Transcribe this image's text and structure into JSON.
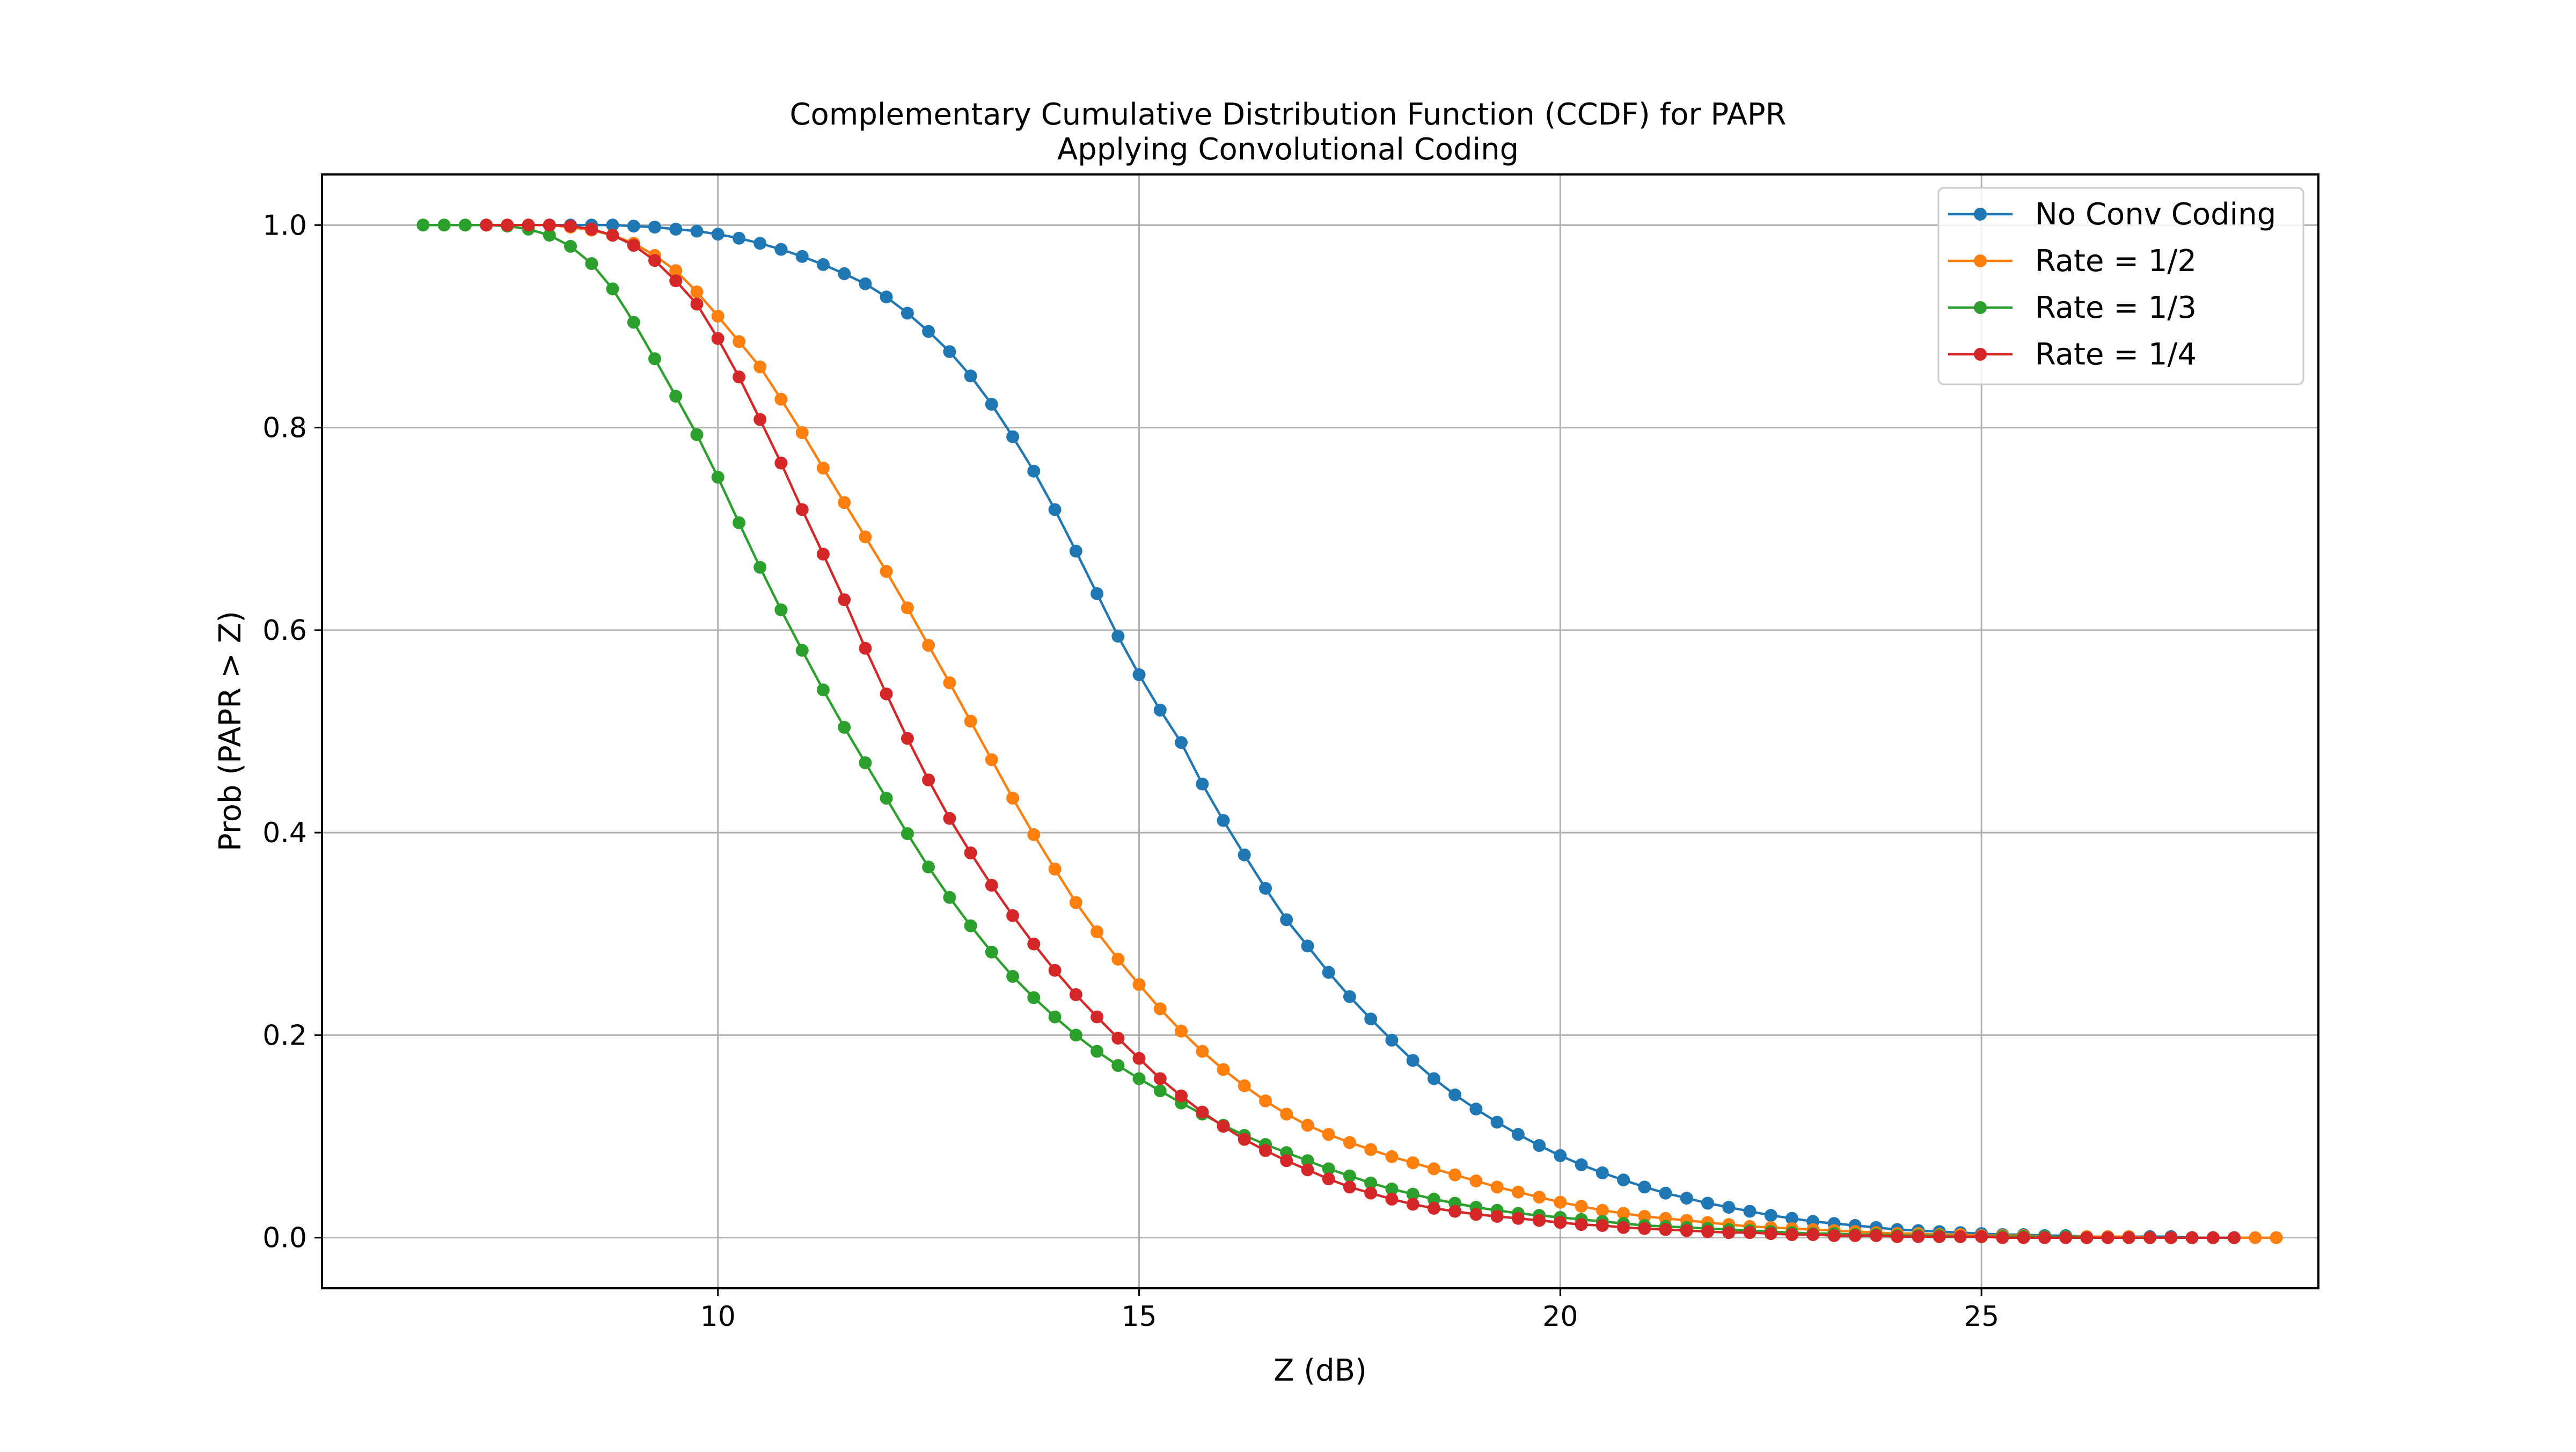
{
  "chart_data": {
    "type": "line",
    "title": "Complementary Cumulative Distribution Function (CCDF) for PAPR",
    "subtitle": "Applying Convolutional Coding",
    "xlabel": "Z (dB)",
    "ylabel": "Prob (PAPR > Z)",
    "xlim": [
      5.3,
      29.0
    ],
    "ylim": [
      -0.05,
      1.05
    ],
    "x_ticks": [
      10,
      15,
      20,
      25
    ],
    "x_tick_labels": [
      "10",
      "15",
      "20",
      "25"
    ],
    "y_ticks": [
      0.0,
      0.2,
      0.4,
      0.6,
      0.8,
      1.0
    ],
    "y_tick_labels": [
      "0.0",
      "0.2",
      "0.4",
      "0.6",
      "0.8",
      "1.0"
    ],
    "grid": true,
    "legend_position": "top-right",
    "series": [
      {
        "name": "No Conv Coding",
        "color": "#1f77b4",
        "x_start": 8.0,
        "x_step": 0.25,
        "values": [
          1.0,
          1.0,
          1.0,
          1.0,
          0.999,
          0.998,
          0.996,
          0.994,
          0.991,
          0.987,
          0.982,
          0.976,
          0.969,
          0.961,
          0.952,
          0.942,
          0.929,
          0.913,
          0.895,
          0.875,
          0.851,
          0.823,
          0.791,
          0.757,
          0.719,
          0.678,
          0.636,
          0.594,
          0.556,
          0.521,
          0.489,
          0.448,
          0.412,
          0.378,
          0.345,
          0.314,
          0.288,
          0.262,
          0.238,
          0.216,
          0.195,
          0.175,
          0.157,
          0.141,
          0.127,
          0.114,
          0.102,
          0.091,
          0.081,
          0.072,
          0.064,
          0.057,
          0.05,
          0.044,
          0.039,
          0.034,
          0.03,
          0.026,
          0.022,
          0.019,
          0.016,
          0.014,
          0.012,
          0.01,
          0.008,
          0.007,
          0.006,
          0.005,
          0.004,
          0.003,
          0.003,
          0.002,
          0.002,
          0.001,
          0.001,
          0.001,
          0.001,
          0.001,
          0.0,
          0.0,
          0.0
        ]
      },
      {
        "name": "Rate = 1/2",
        "color": "#ff7f0e",
        "x_start": 7.0,
        "x_step": 0.25,
        "values": [
          1.0,
          1.0,
          1.0,
          1.0,
          1.0,
          0.998,
          0.995,
          0.99,
          0.982,
          0.97,
          0.955,
          0.934,
          0.91,
          0.885,
          0.86,
          0.828,
          0.795,
          0.76,
          0.726,
          0.692,
          0.658,
          0.622,
          0.585,
          0.548,
          0.51,
          0.472,
          0.434,
          0.398,
          0.364,
          0.331,
          0.302,
          0.275,
          0.25,
          0.226,
          0.204,
          0.184,
          0.166,
          0.15,
          0.135,
          0.122,
          0.111,
          0.102,
          0.094,
          0.087,
          0.08,
          0.074,
          0.068,
          0.062,
          0.056,
          0.05,
          0.045,
          0.04,
          0.035,
          0.031,
          0.027,
          0.024,
          0.021,
          0.019,
          0.017,
          0.015,
          0.013,
          0.011,
          0.01,
          0.009,
          0.008,
          0.007,
          0.006,
          0.005,
          0.004,
          0.004,
          0.003,
          0.003,
          0.002,
          0.002,
          0.002,
          0.001,
          0.001,
          0.001,
          0.001,
          0.001,
          0.0,
          0.0,
          0.0,
          0.0,
          0.0,
          0.0,
          0.0
        ]
      },
      {
        "name": "Rate = 1/3",
        "color": "#2ca02c",
        "x_start": 6.5,
        "x_step": 0.25,
        "values": [
          1.0,
          1.0,
          1.0,
          1.0,
          0.999,
          0.996,
          0.99,
          0.979,
          0.962,
          0.937,
          0.904,
          0.868,
          0.831,
          0.793,
          0.751,
          0.706,
          0.662,
          0.62,
          0.58,
          0.541,
          0.504,
          0.469,
          0.434,
          0.399,
          0.366,
          0.336,
          0.308,
          0.282,
          0.258,
          0.237,
          0.218,
          0.2,
          0.184,
          0.17,
          0.157,
          0.145,
          0.133,
          0.122,
          0.111,
          0.101,
          0.092,
          0.084,
          0.076,
          0.068,
          0.061,
          0.054,
          0.048,
          0.043,
          0.038,
          0.034,
          0.03,
          0.027,
          0.024,
          0.022,
          0.02,
          0.018,
          0.016,
          0.014,
          0.012,
          0.011,
          0.01,
          0.009,
          0.008,
          0.007,
          0.006,
          0.005,
          0.004,
          0.004,
          0.003,
          0.003,
          0.002,
          0.002,
          0.002,
          0.001,
          0.001,
          0.001,
          0.001,
          0.001,
          0.001,
          0.0,
          0.0,
          0.0,
          0.0,
          0.0,
          0.0,
          0.0,
          0.0
        ]
      },
      {
        "name": "Rate = 1/4",
        "color": "#d62728",
        "x_start": 7.25,
        "x_step": 0.25,
        "values": [
          1.0,
          1.0,
          1.0,
          1.0,
          0.999,
          0.996,
          0.99,
          0.98,
          0.965,
          0.945,
          0.922,
          0.888,
          0.85,
          0.808,
          0.765,
          0.719,
          0.675,
          0.63,
          0.582,
          0.537,
          0.493,
          0.452,
          0.414,
          0.38,
          0.348,
          0.318,
          0.29,
          0.264,
          0.24,
          0.218,
          0.197,
          0.177,
          0.157,
          0.14,
          0.124,
          0.11,
          0.097,
          0.086,
          0.076,
          0.067,
          0.058,
          0.05,
          0.044,
          0.038,
          0.033,
          0.029,
          0.026,
          0.023,
          0.021,
          0.019,
          0.017,
          0.015,
          0.013,
          0.012,
          0.01,
          0.009,
          0.008,
          0.007,
          0.006,
          0.005,
          0.005,
          0.004,
          0.003,
          0.003,
          0.002,
          0.002,
          0.002,
          0.001,
          0.001,
          0.001,
          0.001,
          0.001,
          0.0,
          0.0,
          0.0,
          0.0,
          0.0,
          0.0,
          0.0,
          0.0,
          0.0,
          0.0,
          0.0,
          0.0
        ]
      }
    ]
  }
}
